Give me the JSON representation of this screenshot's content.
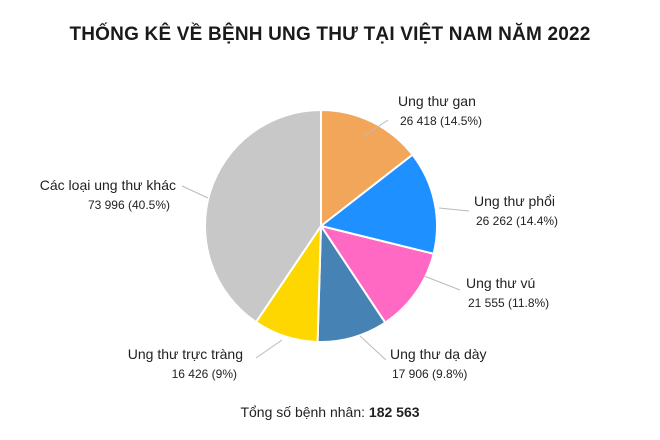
{
  "title": "THỐNG KÊ VỀ BỆNH UNG THƯ TẠI VIỆT NAM NĂM 2022",
  "footer": {
    "label": "Tổng số bệnh nhân:",
    "value": "182 563"
  },
  "chart_data": {
    "type": "pie",
    "title": "THỐNG KÊ VỀ BỆNH UNG THƯ TẠI VIỆT NAM NĂM 2022",
    "slices": [
      {
        "label": "Ung thư gan",
        "value": 26418,
        "value_text": "26 418 (14.5%)",
        "percent": 14.5,
        "color": "#F2A65A"
      },
      {
        "label": "Ung thư phổi",
        "value": 26262,
        "value_text": "26 262 (14.4%)",
        "percent": 14.4,
        "color": "#1E90FF"
      },
      {
        "label": "Ung thư vú",
        "value": 21555,
        "value_text": "21 555 (11.8%)",
        "percent": 11.8,
        "color": "#FF69C4"
      },
      {
        "label": "Ung thư dạ dày",
        "value": 17906,
        "value_text": "17 906 (9.8%)",
        "percent": 9.8,
        "color": "#4682B4"
      },
      {
        "label": "Ung thư trực tràng",
        "value": 16426,
        "value_text": "16 426 (9%)",
        "percent": 9.0,
        "color": "#FFD700"
      },
      {
        "label": "Các loại ung thư khác",
        "value": 73996,
        "value_text": "73 996 (40.5%)",
        "percent": 40.5,
        "color": "#C8C8C8"
      }
    ],
    "total": 182563
  }
}
